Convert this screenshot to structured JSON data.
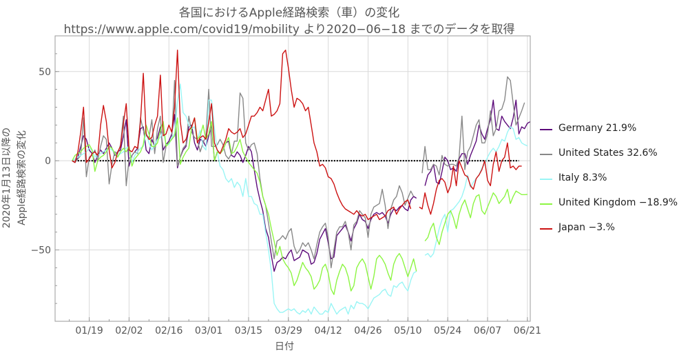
{
  "chart_data": {
    "type": "line",
    "title": "各国におけるApple経路検索（車）の変化",
    "subtitle": "https://www.apple.com/covid19/mobility より2020−06−18 までのデータを取得",
    "xlabel": "日付",
    "ylabel_line1": "2020年1月13日以降の",
    "ylabel_line2": "Apple経路検索の変化",
    "x_start_date": "2020-01-13",
    "x_end_date": "2020-06-18",
    "xlim": [
      "2020-01-07",
      "2020-06-22"
    ],
    "ylim": [
      -90,
      70
    ],
    "x_ticks": [
      {
        "date": "2020-01-19",
        "label": "01/19"
      },
      {
        "date": "2020-02-02",
        "label": "02/02"
      },
      {
        "date": "2020-02-16",
        "label": "02/16"
      },
      {
        "date": "2020-03-01",
        "label": "03/01"
      },
      {
        "date": "2020-03-15",
        "label": "03/15"
      },
      {
        "date": "2020-03-29",
        "label": "03/29"
      },
      {
        "date": "2020-04-12",
        "label": "04/12"
      },
      {
        "date": "2020-04-26",
        "label": "04/26"
      },
      {
        "date": "2020-05-10",
        "label": "05/10"
      },
      {
        "date": "2020-05-24",
        "label": "05/24"
      },
      {
        "date": "2020-06-07",
        "label": "06/07"
      },
      {
        "date": "2020-06-21",
        "label": "06/21"
      }
    ],
    "y_ticks": [
      {
        "value": -50,
        "label": "−50"
      },
      {
        "value": 0,
        "label": "0"
      },
      {
        "value": 50,
        "label": "50"
      }
    ],
    "grid": true,
    "baseline": 0,
    "gap_dates": [
      "2020-05-11",
      "2020-05-12"
    ],
    "series": [
      {
        "name": "Germany 21.9%",
        "color": "#5c0a7a",
        "values": [
          0,
          -1,
          2,
          8,
          14,
          12,
          6,
          4,
          -1,
          3,
          6,
          4,
          7,
          10,
          7,
          3,
          5,
          6,
          14,
          23,
          -3,
          3,
          5,
          7,
          18,
          19,
          6,
          4,
          12,
          8,
          13,
          19,
          6,
          9,
          11,
          15,
          26,
          -4,
          2,
          6,
          8,
          19,
          20,
          10,
          6,
          12,
          11,
          8,
          14,
          20,
          0,
          5,
          4,
          6,
          10,
          11,
          3,
          2,
          5,
          3,
          -1,
          3,
          8,
          5,
          -5,
          -15,
          -22,
          -28,
          -38,
          -43,
          -53,
          -62,
          -57,
          -56,
          -54,
          -55,
          -52,
          -50,
          -56,
          -55,
          -54,
          -50,
          -51,
          -52,
          -58,
          -57,
          -52,
          -44,
          -41,
          -38,
          -46,
          -55,
          -54,
          -42,
          -40,
          -38,
          -36,
          -40,
          -45,
          -38,
          -35,
          -30,
          -33,
          -34,
          -38,
          -33,
          -30,
          -29,
          -30,
          -29,
          -31,
          -35,
          -30,
          -27,
          -28,
          -26,
          -25,
          -27,
          -28,
          -22,
          -20,
          -21,
          null,
          null,
          -14,
          -8,
          -6,
          -2,
          -12,
          -13,
          -6,
          2,
          0,
          -5,
          -4,
          -6,
          1,
          4,
          4,
          -2,
          3,
          7,
          11,
          20,
          15,
          12,
          18,
          23,
          34,
          18,
          17,
          25,
          22,
          20,
          18,
          24,
          34,
          15,
          19,
          18,
          21,
          21.9
        ]
      },
      {
        "name": "United States 32.6%",
        "color": "#888888",
        "values": [
          0,
          -1,
          1,
          3,
          24,
          -9,
          2,
          3,
          6,
          0,
          8,
          14,
          12,
          -13,
          -2,
          5,
          4,
          9,
          25,
          -14,
          1,
          3,
          5,
          4,
          24,
          17,
          14,
          13,
          23,
          4,
          18,
          25,
          -1,
          8,
          10,
          12,
          45,
          -3,
          2,
          7,
          9,
          25,
          16,
          13,
          12,
          5,
          10,
          14,
          40,
          8,
          8,
          9,
          12,
          9,
          3,
          1,
          4,
          11,
          11,
          38,
          35,
          10,
          6,
          9,
          10,
          4,
          -10,
          -20,
          -25,
          -35,
          -45,
          -55,
          -45,
          -44,
          -42,
          -44,
          -40,
          -38,
          -48,
          -52,
          -50,
          -46,
          -48,
          -46,
          -50,
          -55,
          -47,
          -40,
          -37,
          -35,
          -43,
          -60,
          -50,
          -40,
          -37,
          -37,
          -34,
          -40,
          -50,
          -36,
          -34,
          -28,
          -30,
          -32,
          -43,
          -30,
          -26,
          -25,
          -24,
          -16,
          -25,
          -38,
          -27,
          -22,
          -20,
          -14,
          -18,
          -25,
          -21,
          -17,
          -20,
          null,
          null,
          -7,
          8,
          -5,
          -5,
          -2,
          -3,
          -8,
          3,
          -2,
          -3,
          -2,
          -2,
          -3,
          2,
          25,
          -5,
          5,
          8,
          14,
          20,
          23,
          10,
          10,
          15,
          28,
          14,
          18,
          28,
          29,
          34,
          47,
          45,
          32,
          20,
          24,
          28,
          32.6
        ]
      },
      {
        "name": "Italy 8.3%",
        "color": "#99f5f5",
        "values": [
          0,
          1,
          2,
          3,
          4,
          5,
          7,
          6,
          2,
          3,
          4,
          5,
          6,
          7,
          6,
          4,
          3,
          4,
          5,
          7,
          8,
          -1,
          3,
          5,
          7,
          8,
          16,
          10,
          6,
          9,
          12,
          13,
          17,
          9,
          9,
          13,
          15,
          33,
          43,
          27,
          25,
          20,
          18,
          19,
          12,
          17,
          8,
          6,
          34,
          34,
          18,
          5,
          -3,
          -5,
          -10,
          -12,
          -10,
          -15,
          -12,
          -14,
          -20,
          -10,
          -20,
          -20,
          -24,
          -25,
          -30,
          -30,
          -40,
          -50,
          -62,
          -80,
          -83,
          -85,
          -85,
          -84,
          -83,
          -84,
          -83,
          -85,
          -86,
          -84,
          -85,
          -83,
          -86,
          -82,
          -84,
          -86,
          -86,
          -84,
          -85,
          -80,
          -83,
          -86,
          -84,
          -83,
          -82,
          -86,
          -81,
          -83,
          -79,
          -80,
          -80,
          -81,
          -83,
          -80,
          -77,
          -76,
          -75,
          -73,
          -72,
          -75,
          -76,
          -70,
          -71,
          -69,
          -68,
          -71,
          -73,
          -67,
          -63,
          -62,
          null,
          null,
          -53,
          -52,
          -54,
          -52,
          -45,
          -38,
          -33,
          -30,
          -40,
          -28,
          -27,
          -25,
          -23,
          -20,
          -15,
          -8,
          -15,
          -12,
          -10,
          -8,
          -4,
          -2,
          2,
          5,
          7,
          5,
          8,
          12,
          11,
          16,
          19,
          18,
          12,
          13,
          10,
          9,
          8.3
        ]
      },
      {
        "name": "United Kingdom −18.9%",
        "color": "#8cf542",
        "values": [
          0,
          3,
          4,
          5,
          7,
          8,
          9,
          6,
          -6,
          0,
          2,
          3,
          5,
          8,
          7,
          4,
          2,
          5,
          7,
          5,
          8,
          -3,
          1,
          3,
          5,
          9,
          20,
          15,
          8,
          8,
          10,
          17,
          22,
          8,
          10,
          12,
          14,
          24,
          -2,
          2,
          5,
          7,
          19,
          24,
          12,
          14,
          20,
          12,
          15,
          22,
          0,
          5,
          4,
          6,
          10,
          13,
          4,
          5,
          8,
          12,
          5,
          2,
          -1,
          -3,
          -5,
          -7,
          -12,
          -20,
          -25,
          -30,
          -38,
          -45,
          -53,
          -48,
          -55,
          -58,
          -60,
          -63,
          -70,
          -67,
          -62,
          -57,
          -60,
          -62,
          -65,
          -72,
          -70,
          -67,
          -60,
          -58,
          -63,
          -72,
          -75,
          -67,
          -62,
          -58,
          -60,
          -65,
          -73,
          -70,
          -60,
          -57,
          -55,
          -58,
          -65,
          -72,
          -65,
          -55,
          -53,
          -55,
          -58,
          -63,
          -67,
          -58,
          -54,
          -52,
          -55,
          -60,
          -65,
          -60,
          -55,
          -62,
          null,
          null,
          -45,
          -43,
          -38,
          -35,
          -43,
          -47,
          -40,
          -35,
          -30,
          -28,
          -32,
          -38,
          -30,
          -25,
          -22,
          -27,
          -32,
          -24,
          -20,
          -19,
          -28,
          -30,
          -26,
          -22,
          -18,
          -20,
          -24,
          -22,
          -20,
          -16,
          -24,
          -20,
          -17,
          -18,
          -19,
          -19,
          -18.9
        ]
      },
      {
        "name": "Japan −3.%",
        "color": "#cc1111",
        "values": [
          0,
          -1,
          5,
          16,
          30,
          -1,
          1,
          4,
          5,
          3,
          20,
          31,
          22,
          6,
          -4,
          -1,
          5,
          8,
          21,
          32,
          6,
          5,
          8,
          7,
          22,
          49,
          15,
          12,
          13,
          20,
          25,
          48,
          14,
          15,
          20,
          16,
          30,
          62,
          22,
          10,
          12,
          17,
          19,
          24,
          10,
          13,
          14,
          12,
          22,
          32,
          10,
          6,
          4,
          8,
          12,
          18,
          16,
          15,
          16,
          18,
          13,
          15,
          20,
          25,
          25,
          27,
          30,
          28,
          34,
          40,
          25,
          26,
          28,
          32,
          60,
          62,
          52,
          40,
          30,
          35,
          34,
          32,
          28,
          30,
          20,
          10,
          5,
          -3,
          -2,
          -4,
          -9,
          -10,
          -13,
          -18,
          -22,
          -25,
          -27,
          -28,
          -29,
          -30,
          -28,
          -30,
          -31,
          -30,
          -33,
          -32,
          -31,
          -30,
          -33,
          -32,
          -31,
          -28,
          -27,
          -26,
          -30,
          -27,
          -25,
          -23,
          -22,
          -27,
          null,
          null,
          -26,
          -27,
          -18,
          -25,
          -30,
          -24,
          -16,
          -11,
          -10,
          -12,
          -18,
          -14,
          -3,
          -14,
          0,
          -4,
          -8,
          -9,
          -14,
          -16,
          -10,
          -8,
          -5,
          0,
          -11,
          -14,
          -2,
          5,
          -6,
          0,
          2,
          10,
          -4,
          -3,
          -5,
          -3,
          -3
        ]
      }
    ]
  }
}
